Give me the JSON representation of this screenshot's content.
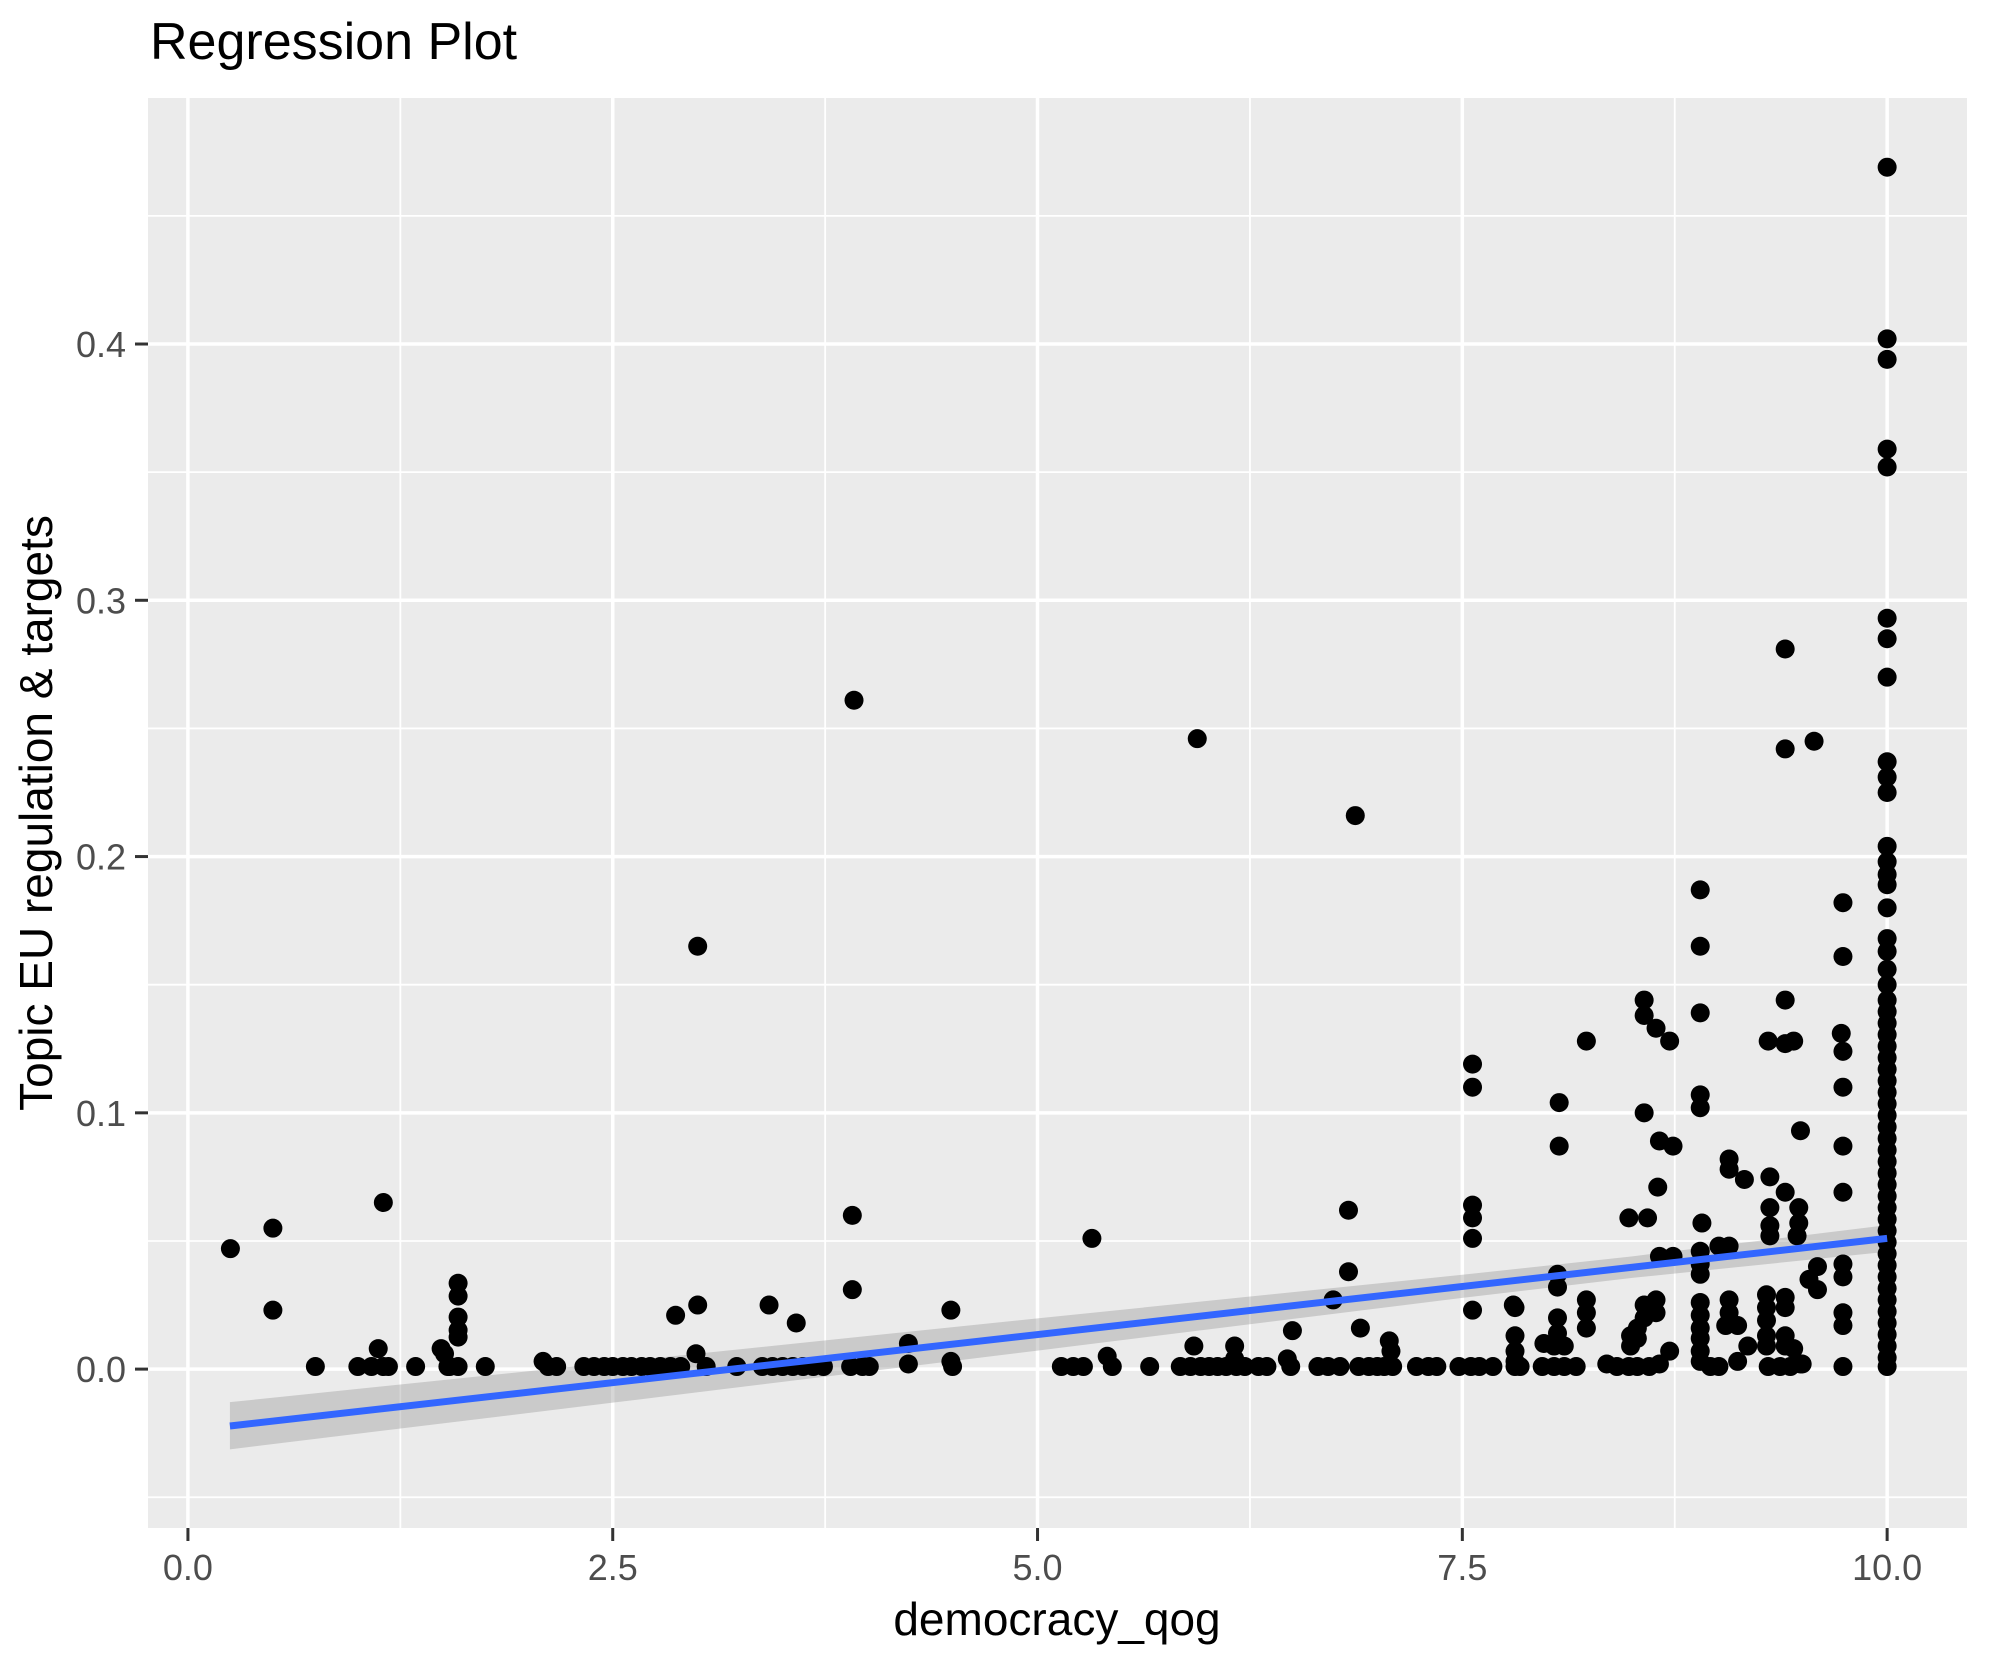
{
  "chart_data": {
    "type": "scatter",
    "title": "Regression Plot",
    "xlabel": "democracy_qog",
    "ylabel": "Topic EU regulation & targets",
    "legend": "none",
    "grid": "major and minor white gridlines on gray panel",
    "x_axis": {
      "range": [
        -0.235,
        10.47
      ],
      "ticks": [
        0.0,
        2.5,
        5.0,
        7.5,
        10.0
      ],
      "tick_labels": [
        "0.0",
        "2.5",
        "5.0",
        "7.5",
        "10.0"
      ],
      "minor_ticks": [
        1.25,
        3.75,
        6.25,
        8.75
      ]
    },
    "y_axis": {
      "range": [
        -0.062,
        0.496
      ],
      "ticks": [
        0.0,
        0.1,
        0.2,
        0.3,
        0.4
      ],
      "tick_labels": [
        "0.0",
        "0.1",
        "0.2",
        "0.3",
        "0.4"
      ],
      "minor_ticks": [
        -0.05,
        0.05,
        0.15,
        0.25,
        0.35,
        0.45
      ]
    },
    "regression_line": {
      "x": [
        0.247,
        10.0
      ],
      "y": [
        -0.0222,
        0.051
      ]
    },
    "confidence_band": {
      "x": [
        0.247,
        2.5,
        5.0,
        7.5,
        8.5,
        10.0
      ],
      "upper": [
        -0.0129,
        0.0026,
        0.0198,
        0.0368,
        0.044,
        0.0562
      ],
      "lower": [
        -0.0313,
        -0.0131,
        0.0072,
        0.0278,
        0.0356,
        0.0458
      ]
    },
    "colors": {
      "panel_background": "#EBEBEB",
      "gridline": "#FFFFFF",
      "point": "#000000",
      "regression_line": "#3366FF",
      "confidence_band": "#999999",
      "confidence_band_opacity": 0.4,
      "tick_label": "#4D4D4D",
      "tick_mark": "#333333",
      "title": "#000000",
      "axis_title": "#000000"
    },
    "point_radius_px": 9.5,
    "points": [
      [
        0.25,
        0.047
      ],
      [
        0.5,
        0.055
      ],
      [
        0.5,
        0.023
      ],
      [
        1.15,
        0.065
      ],
      [
        1.12,
        0.008
      ],
      [
        1.49,
        0.008
      ],
      [
        0.75,
        0.001
      ],
      [
        1.0,
        0.001
      ],
      [
        1.08,
        0.001
      ],
      [
        1.15,
        0.001
      ],
      [
        1.18,
        0.001
      ],
      [
        1.34,
        0.001
      ],
      [
        1.54,
        0.001
      ],
      [
        1.75,
        0.001
      ],
      [
        1.59,
        0.0335
      ],
      [
        1.59,
        0.0285
      ],
      [
        1.59,
        0.0203
      ],
      [
        1.59,
        0.0152
      ],
      [
        1.59,
        0.0125
      ],
      [
        1.51,
        0.006
      ],
      [
        1.53,
        0.001
      ],
      [
        1.59,
        0.001
      ],
      [
        2.09,
        0.003
      ],
      [
        2.12,
        0.001
      ],
      [
        2.17,
        0.001
      ],
      [
        2.33,
        0.001
      ],
      [
        2.39,
        0.001
      ],
      [
        2.45,
        0.001
      ],
      [
        3.0,
        0.165
      ],
      [
        2.87,
        0.021
      ],
      [
        3.0,
        0.025
      ],
      [
        3.42,
        0.025
      ],
      [
        3.58,
        0.018
      ],
      [
        3.91,
        0.06
      ],
      [
        3.91,
        0.031
      ],
      [
        3.92,
        0.261
      ],
      [
        2.5,
        0.001
      ],
      [
        2.56,
        0.001
      ],
      [
        2.61,
        0.001
      ],
      [
        2.67,
        0.001
      ],
      [
        2.72,
        0.001
      ],
      [
        2.78,
        0.001
      ],
      [
        2.84,
        0.001
      ],
      [
        2.9,
        0.001
      ],
      [
        2.99,
        0.006
      ],
      [
        3.05,
        0.001
      ],
      [
        3.23,
        0.001
      ],
      [
        3.38,
        0.001
      ],
      [
        3.44,
        0.001
      ],
      [
        3.5,
        0.001
      ],
      [
        3.56,
        0.001
      ],
      [
        3.62,
        0.001
      ],
      [
        3.68,
        0.001
      ],
      [
        3.74,
        0.001
      ],
      [
        3.9,
        0.001
      ],
      [
        3.97,
        0.001
      ],
      [
        4.01,
        0.001
      ],
      [
        4.24,
        0.01
      ],
      [
        4.24,
        0.002
      ],
      [
        4.49,
        0.023
      ],
      [
        4.49,
        0.003
      ],
      [
        4.5,
        0.001
      ],
      [
        5.94,
        0.246
      ],
      [
        6.87,
        0.216
      ],
      [
        5.32,
        0.051
      ],
      [
        6.83,
        0.062
      ],
      [
        6.83,
        0.038
      ],
      [
        6.74,
        0.027
      ],
      [
        6.5,
        0.015
      ],
      [
        6.9,
        0.016
      ],
      [
        7.07,
        0.011
      ],
      [
        7.08,
        0.007
      ],
      [
        5.92,
        0.009
      ],
      [
        6.16,
        0.009
      ],
      [
        6.16,
        0.004
      ],
      [
        6.47,
        0.004
      ],
      [
        5.14,
        0.001
      ],
      [
        5.21,
        0.001
      ],
      [
        5.27,
        0.001
      ],
      [
        5.41,
        0.005
      ],
      [
        5.44,
        0.001
      ],
      [
        5.66,
        0.001
      ],
      [
        5.84,
        0.001
      ],
      [
        5.9,
        0.001
      ],
      [
        5.96,
        0.001
      ],
      [
        6.01,
        0.001
      ],
      [
        6.06,
        0.001
      ],
      [
        6.11,
        0.001
      ],
      [
        6.17,
        0.001
      ],
      [
        6.22,
        0.001
      ],
      [
        6.3,
        0.001
      ],
      [
        6.35,
        0.001
      ],
      [
        6.49,
        0.001
      ],
      [
        6.65,
        0.001
      ],
      [
        6.71,
        0.001
      ],
      [
        6.78,
        0.001
      ],
      [
        6.89,
        0.001
      ],
      [
        6.95,
        0.001
      ],
      [
        7.0,
        0.001
      ],
      [
        7.04,
        0.001
      ],
      [
        7.09,
        0.001
      ],
      [
        7.23,
        0.001
      ],
      [
        7.3,
        0.001
      ],
      [
        7.35,
        0.001
      ],
      [
        7.48,
        0.001
      ],
      [
        7.55,
        0.001
      ],
      [
        7.6,
        0.001
      ],
      [
        7.68,
        0.001
      ],
      [
        7.84,
        0.001
      ],
      [
        7.56,
        0.119
      ],
      [
        7.56,
        0.11
      ],
      [
        7.56,
        0.064
      ],
      [
        7.56,
        0.059
      ],
      [
        7.56,
        0.051
      ],
      [
        7.56,
        0.023
      ],
      [
        7.8,
        0.025
      ],
      [
        7.81,
        0.024
      ],
      [
        7.81,
        0.013
      ],
      [
        7.81,
        0.007
      ],
      [
        7.81,
        0.003
      ],
      [
        7.81,
        0.001
      ],
      [
        8.07,
        0.104
      ],
      [
        8.07,
        0.087
      ],
      [
        8.57,
        0.1
      ],
      [
        8.9,
        0.107
      ],
      [
        8.9,
        0.102
      ],
      [
        8.66,
        0.089
      ],
      [
        8.74,
        0.087
      ],
      [
        9.49,
        0.093
      ],
      [
        9.07,
        0.082
      ],
      [
        9.07,
        0.078
      ],
      [
        9.16,
        0.074
      ],
      [
        9.31,
        0.075
      ],
      [
        9.4,
        0.069
      ],
      [
        8.65,
        0.071
      ],
      [
        8.48,
        0.059
      ],
      [
        8.59,
        0.059
      ],
      [
        9.31,
        0.063
      ],
      [
        9.31,
        0.056
      ],
      [
        9.48,
        0.063
      ],
      [
        9.48,
        0.057
      ],
      [
        8.91,
        0.057
      ],
      [
        9.31,
        0.052
      ],
      [
        9.47,
        0.052
      ],
      [
        9.01,
        0.048
      ],
      [
        9.07,
        0.048
      ],
      [
        8.66,
        0.044
      ],
      [
        8.74,
        0.044
      ],
      [
        8.9,
        0.046
      ],
      [
        8.9,
        0.041
      ],
      [
        8.9,
        0.037
      ],
      [
        8.06,
        0.037
      ],
      [
        8.06,
        0.032
      ],
      [
        8.23,
        0.027
      ],
      [
        8.23,
        0.022
      ],
      [
        8.23,
        0.016
      ],
      [
        8.06,
        0.02
      ],
      [
        8.06,
        0.014
      ],
      [
        7.98,
        0.01
      ],
      [
        8.04,
        0.009
      ],
      [
        8.1,
        0.009
      ],
      [
        8.57,
        0.025
      ],
      [
        8.57,
        0.02
      ],
      [
        8.64,
        0.027
      ],
      [
        8.64,
        0.022
      ],
      [
        8.53,
        0.016
      ],
      [
        8.53,
        0.012
      ],
      [
        8.49,
        0.013
      ],
      [
        8.49,
        0.009
      ],
      [
        8.72,
        0.007
      ],
      [
        8.9,
        0.026
      ],
      [
        8.9,
        0.021
      ],
      [
        8.9,
        0.016
      ],
      [
        8.9,
        0.012
      ],
      [
        8.9,
        0.007
      ],
      [
        8.9,
        0.003
      ],
      [
        9.05,
        0.017
      ],
      [
        9.07,
        0.027
      ],
      [
        9.07,
        0.022
      ],
      [
        9.12,
        0.017
      ],
      [
        9.18,
        0.009
      ],
      [
        9.12,
        0.003
      ],
      [
        9.29,
        0.029
      ],
      [
        9.4,
        0.028
      ],
      [
        9.29,
        0.024
      ],
      [
        9.4,
        0.024
      ],
      [
        9.29,
        0.019
      ],
      [
        9.29,
        0.013
      ],
      [
        9.4,
        0.013
      ],
      [
        9.29,
        0.009
      ],
      [
        9.4,
        0.009
      ],
      [
        9.45,
        0.008
      ],
      [
        9.5,
        0.002
      ],
      [
        9.59,
        0.04
      ],
      [
        9.54,
        0.035
      ],
      [
        9.59,
        0.031
      ],
      [
        9.74,
        0.041
      ],
      [
        9.74,
        0.036
      ],
      [
        9.74,
        0.022
      ],
      [
        9.74,
        0.017
      ],
      [
        9.74,
        0.001
      ],
      [
        9.74,
        0.124
      ],
      [
        9.74,
        0.11
      ],
      [
        9.74,
        0.087
      ],
      [
        9.74,
        0.069
      ],
      [
        7.97,
        0.001
      ],
      [
        8.04,
        0.001
      ],
      [
        8.1,
        0.001
      ],
      [
        8.17,
        0.001
      ],
      [
        8.35,
        0.002
      ],
      [
        8.41,
        0.001
      ],
      [
        8.48,
        0.001
      ],
      [
        8.53,
        0.001
      ],
      [
        8.6,
        0.001
      ],
      [
        8.66,
        0.002
      ],
      [
        8.96,
        0.001
      ],
      [
        9.01,
        0.001
      ],
      [
        9.3,
        0.001
      ],
      [
        9.37,
        0.001
      ],
      [
        9.43,
        0.001
      ],
      [
        9.49,
        0.002
      ],
      [
        8.9,
        0.187
      ],
      [
        8.9,
        0.165
      ],
      [
        9.74,
        0.182
      ],
      [
        9.74,
        0.161
      ],
      [
        9.4,
        0.281
      ],
      [
        9.4,
        0.242
      ],
      [
        9.57,
        0.245
      ],
      [
        8.57,
        0.144
      ],
      [
        8.57,
        0.138
      ],
      [
        8.64,
        0.133
      ],
      [
        8.72,
        0.128
      ],
      [
        8.9,
        0.139
      ],
      [
        9.4,
        0.144
      ],
      [
        8.23,
        0.128
      ],
      [
        9.3,
        0.128
      ],
      [
        9.4,
        0.127
      ],
      [
        9.45,
        0.128
      ],
      [
        9.73,
        0.131
      ],
      [
        10,
        0.469
      ],
      [
        10,
        0.402
      ],
      [
        10,
        0.394
      ],
      [
        10,
        0.359
      ],
      [
        10,
        0.352
      ],
      [
        10,
        0.293
      ],
      [
        10,
        0.285
      ],
      [
        10,
        0.27
      ],
      [
        10,
        0.237
      ],
      [
        10,
        0.231
      ],
      [
        10,
        0.225
      ],
      [
        10,
        0.204
      ],
      [
        10,
        0.198
      ],
      [
        10,
        0.193
      ],
      [
        10,
        0.189
      ],
      [
        10,
        0.18
      ],
      [
        10,
        0.168
      ],
      [
        10,
        0.163
      ],
      [
        10,
        0.156
      ],
      [
        10,
        0.15
      ],
      [
        10,
        0.144
      ],
      [
        10,
        0.1395
      ],
      [
        10,
        0.135
      ],
      [
        10,
        0.1305
      ],
      [
        10,
        0.126
      ],
      [
        10,
        0.1215
      ],
      [
        10,
        0.117
      ],
      [
        10,
        0.1125
      ],
      [
        10,
        0.108
      ],
      [
        10,
        0.1035
      ],
      [
        10,
        0.099
      ],
      [
        10,
        0.0945
      ],
      [
        10,
        0.09
      ],
      [
        10,
        0.0855
      ],
      [
        10,
        0.081
      ],
      [
        10,
        0.0765
      ],
      [
        10,
        0.072
      ],
      [
        10,
        0.0675
      ],
      [
        10,
        0.063
      ],
      [
        10,
        0.0585
      ],
      [
        10,
        0.054
      ],
      [
        10,
        0.0495
      ],
      [
        10,
        0.045
      ],
      [
        10,
        0.0405
      ],
      [
        10,
        0.036
      ],
      [
        10,
        0.0315
      ],
      [
        10,
        0.027
      ],
      [
        10,
        0.0225
      ],
      [
        10,
        0.018
      ],
      [
        10,
        0.0135
      ],
      [
        10,
        0.009
      ],
      [
        10,
        0.0045
      ],
      [
        10,
        0.001
      ]
    ]
  }
}
